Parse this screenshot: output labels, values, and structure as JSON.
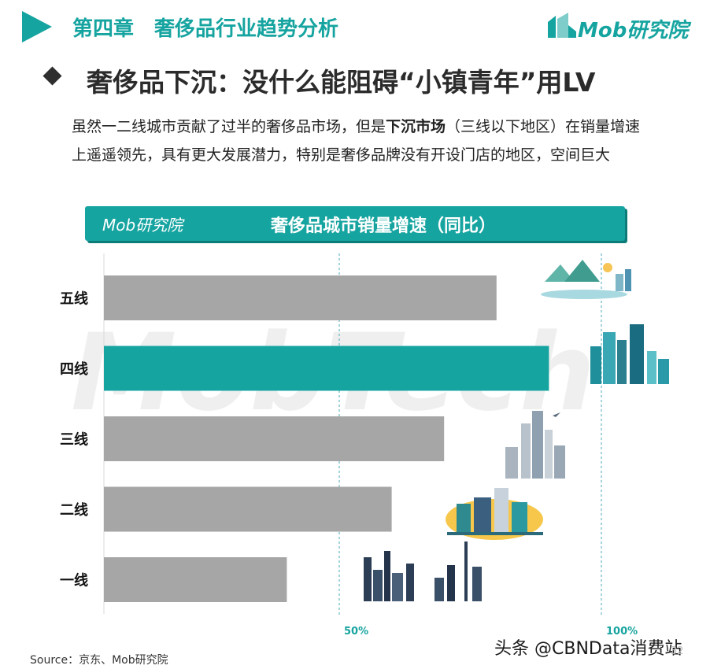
{
  "header": {
    "chapter_title": "第四章　奢侈品行业趋势分析",
    "brand": "Mob研究院"
  },
  "slide": {
    "subtitle": "奢侈品下沉：没什么能阻碍“小镇青年”用LV",
    "desc_part1": "虽然一二线城市贡献了过半的奢侈品市场，但是",
    "desc_bold": "下沉市场",
    "desc_part2": "（三线以下地区）在销量增速上遥遥领先，具有更大发展潜力，特别是奢侈品牌没有开设门店的地区，空间巨大"
  },
  "banner": {
    "brand": "Mob研究院",
    "title": "奢侈品城市销量增速（同比）"
  },
  "watermark": "MobTech",
  "chart_data": {
    "type": "bar",
    "orientation": "horizontal",
    "title": "奢侈品城市销量增速（同比）",
    "categories": [
      "五线",
      "四线",
      "三线",
      "二线",
      "一线"
    ],
    "values": [
      80,
      90,
      70,
      60,
      40
    ],
    "highlight_category": "四线",
    "reference_lines": [
      {
        "value": 50,
        "label": "50%"
      },
      {
        "value": 100,
        "label": "100%"
      }
    ],
    "bar_color": "#a6a6a6",
    "highlight_color": "#16a4a0"
  },
  "footer": {
    "source": "Source：京东、Mob研究院",
    "credit": "头条 @CBNData消费站",
    "page_number": "32"
  },
  "colors": {
    "accent": "#16a4a0"
  }
}
